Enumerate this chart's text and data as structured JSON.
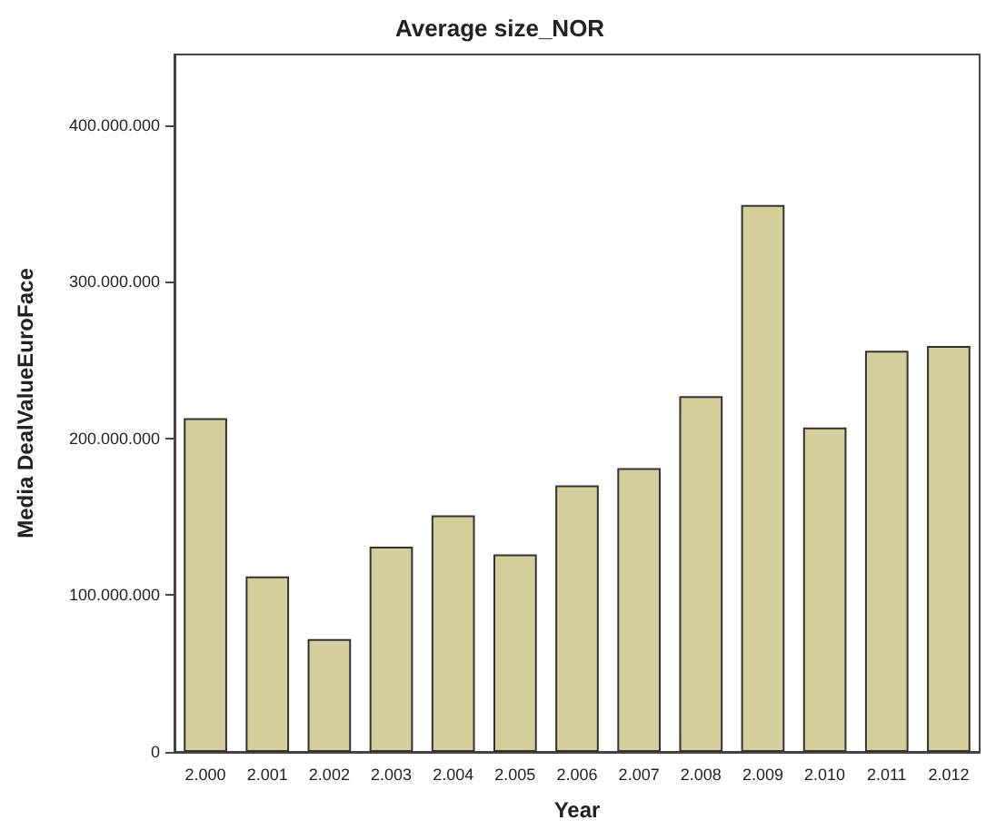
{
  "chart_data": {
    "type": "bar",
    "title": "Average size_NOR",
    "xlabel": "Year",
    "ylabel": "Media DealValueEuroFace",
    "categories": [
      "2.000",
      "2.001",
      "2.002",
      "2.003",
      "2.004",
      "2.005",
      "2.006",
      "2.007",
      "2.008",
      "2.009",
      "2.010",
      "2.011",
      "2.012"
    ],
    "values": [
      213000000,
      112000000,
      72000000,
      131000000,
      151000000,
      126000000,
      170000000,
      181000000,
      227000000,
      349000000,
      207000000,
      256000000,
      259000000
    ],
    "color": "#d3ce9a",
    "ylim": [
      0,
      445000000
    ],
    "yticks": [
      0,
      {
        "value": 100000000,
        "label": "100.000.000"
      },
      {
        "value": 200000000,
        "label": "200.000.000"
      },
      {
        "value": 300000000,
        "label": "300.000.000"
      },
      {
        "value": 400000000,
        "label": "400.000.000"
      }
    ],
    "grid": false
  }
}
